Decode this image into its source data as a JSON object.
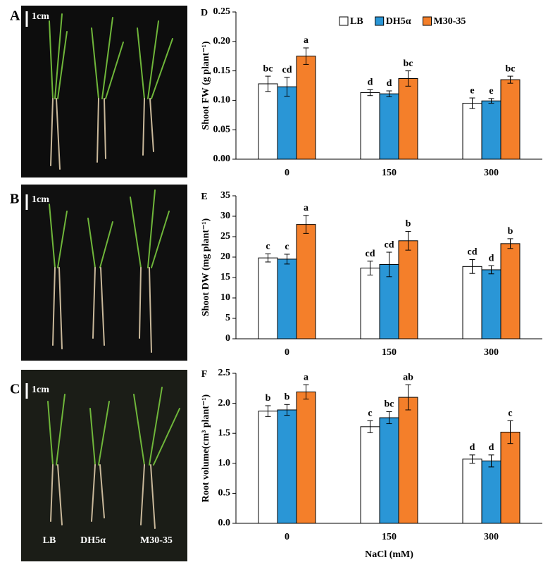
{
  "photo_panels": {
    "panels": [
      {
        "letter": "A",
        "scale": "1cm"
      },
      {
        "letter": "B",
        "scale": "1cm"
      },
      {
        "letter": "C",
        "scale": "1cm"
      }
    ],
    "labels": [
      "LB",
      "DH5α",
      "M30-35"
    ]
  },
  "chart_data": [
    {
      "type": "bar",
      "panel": "D",
      "y_label": "Shoot FW (g plant⁻¹)",
      "categories": [
        "0",
        "150",
        "300"
      ],
      "legend": true,
      "ylim": [
        0,
        0.25
      ],
      "yticks": [
        {
          "value": 0,
          "label": "0.00"
        },
        {
          "value": 0.05,
          "label": "0.05"
        },
        {
          "value": 0.1,
          "label": "0.10"
        },
        {
          "value": 0.15,
          "label": "0.15"
        },
        {
          "value": 0.2,
          "label": "0.20"
        },
        {
          "value": 0.25,
          "label": "0.25"
        }
      ],
      "series": [
        {
          "name": "LB",
          "color": "#ffffff",
          "values": [
            0.128,
            0.113,
            0.095
          ],
          "errors": [
            0.013,
            0.005,
            0.009
          ],
          "letters": [
            "bc",
            "d",
            "e"
          ]
        },
        {
          "name": "DH5α",
          "color": "#2a96d6",
          "values": [
            0.123,
            0.111,
            0.099
          ],
          "errors": [
            0.016,
            0.005,
            0.004
          ],
          "letters": [
            "cd",
            "d",
            "e"
          ]
        },
        {
          "name": "M30-35",
          "color": "#f47f2a",
          "values": [
            0.175,
            0.137,
            0.135
          ],
          "errors": [
            0.014,
            0.013,
            0.006
          ],
          "letters": [
            "a",
            "bc",
            "bc"
          ]
        }
      ]
    },
    {
      "type": "bar",
      "panel": "E",
      "y_label": "Shoot DW (mg plant⁻¹)",
      "categories": [
        "0",
        "150",
        "300"
      ],
      "legend": false,
      "ylim": [
        0,
        35
      ],
      "yticks": [
        0,
        5,
        10,
        15,
        20,
        25,
        30,
        35
      ],
      "series": [
        {
          "color": "#ffffff",
          "values": [
            19.8,
            17.3,
            17.7
          ],
          "errors": [
            1.0,
            1.7,
            1.7
          ],
          "letters": [
            "c",
            "cd",
            "cd"
          ]
        },
        {
          "color": "#2a96d6",
          "values": [
            19.5,
            18.2,
            16.9
          ],
          "errors": [
            1.2,
            3.0,
            1.0
          ],
          "letters": [
            "c",
            "cd",
            "d"
          ]
        },
        {
          "color": "#f47f2a",
          "values": [
            28.0,
            24.0,
            23.3
          ],
          "errors": [
            2.2,
            2.3,
            1.2
          ],
          "letters": [
            "a",
            "b",
            "b"
          ]
        }
      ]
    },
    {
      "type": "bar",
      "panel": "F",
      "y_label": "Root volume(cm³ plant⁻¹)",
      "x_label": "NaCl (mM)",
      "categories": [
        "0",
        "150",
        "300"
      ],
      "legend": false,
      "ylim": [
        0,
        2.5
      ],
      "yticks": [
        {
          "value": 0,
          "label": "0.0"
        },
        {
          "value": 0.5,
          "label": "0.5"
        },
        {
          "value": 1,
          "label": "1.0"
        },
        {
          "value": 1.5,
          "label": "1.5"
        },
        {
          "value": 2,
          "label": "2.0"
        },
        {
          "value": 2.5,
          "label": "2.5"
        }
      ],
      "series": [
        {
          "color": "#ffffff",
          "values": [
            1.87,
            1.61,
            1.07
          ],
          "errors": [
            0.09,
            0.1,
            0.07
          ],
          "letters": [
            "b",
            "c",
            "d"
          ]
        },
        {
          "color": "#2a96d6",
          "values": [
            1.89,
            1.76,
            1.04
          ],
          "errors": [
            0.09,
            0.1,
            0.1
          ],
          "letters": [
            "b",
            "bc",
            "d"
          ]
        },
        {
          "color": "#f47f2a",
          "values": [
            2.19,
            2.1,
            1.52
          ],
          "errors": [
            0.12,
            0.21,
            0.19
          ],
          "letters": [
            "a",
            "ab",
            "c"
          ]
        }
      ]
    }
  ]
}
